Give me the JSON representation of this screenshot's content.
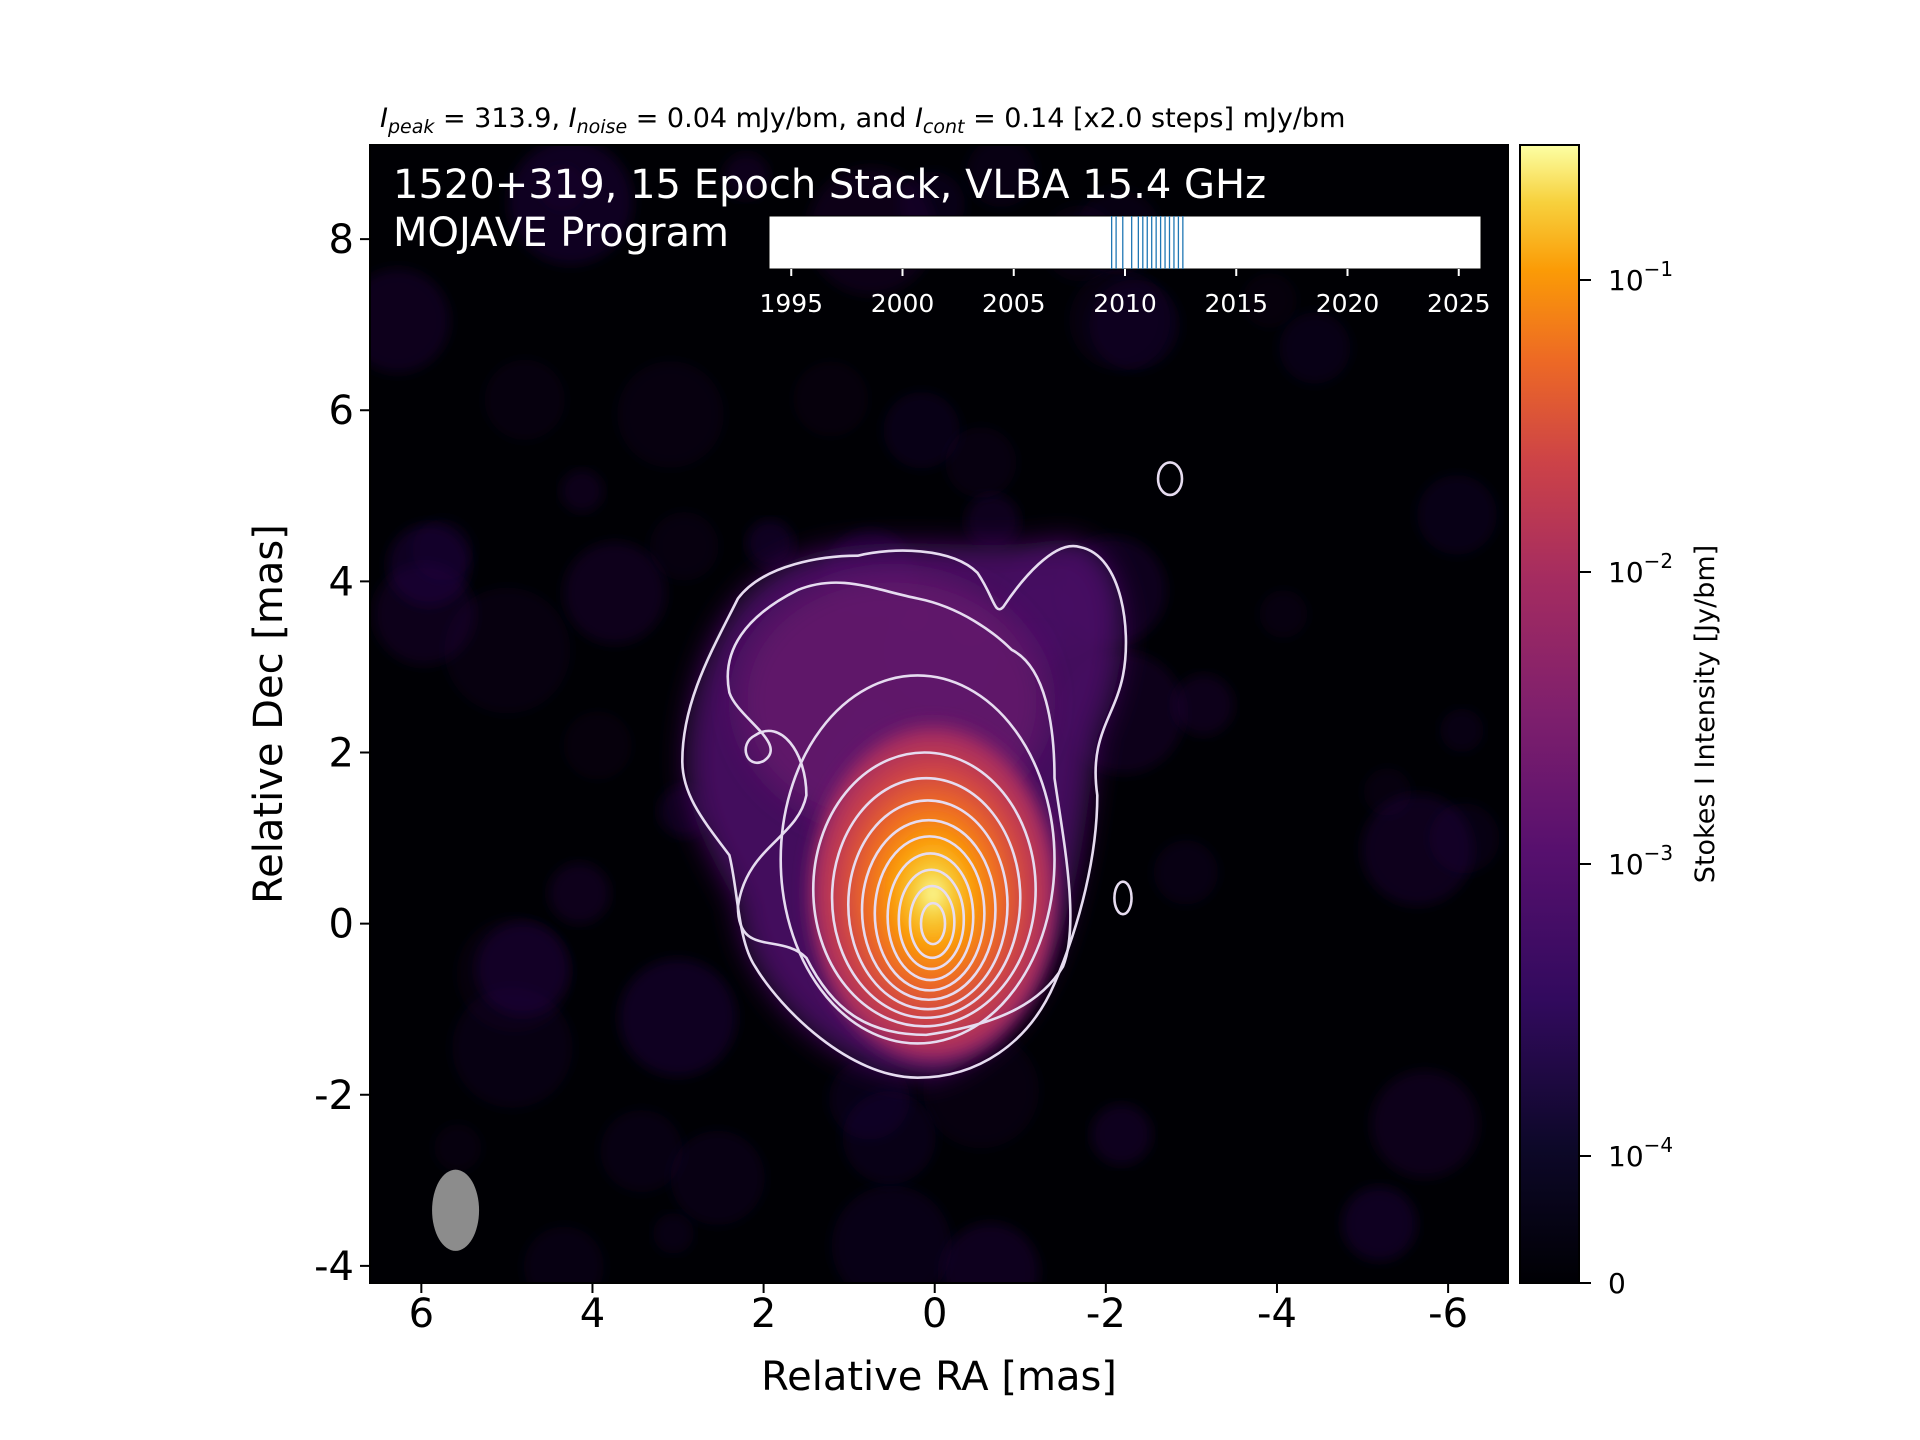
{
  "header": {
    "title_parts": [
      {
        "t": "I",
        "it": true
      },
      {
        "t": "peak",
        "it": true,
        "sub": true
      },
      {
        "t": " = 313.9, "
      },
      {
        "t": "I",
        "it": true
      },
      {
        "t": "noise",
        "it": true,
        "sub": true
      },
      {
        "t": " = 0.04 mJy/bm, and "
      },
      {
        "t": "I",
        "it": true
      },
      {
        "t": "cont",
        "it": true,
        "sub": true
      },
      {
        "t": " = 0.14 [x2.0 steps] mJy/bm"
      }
    ]
  },
  "overlay": {
    "line1": "1520+319, 15 Epoch Stack, VLBA 15.4 GHz",
    "line2": "MOJAVE Program"
  },
  "chart_data": {
    "type": "heatmap",
    "xlabel": "Relative RA [mas]",
    "ylabel": "Relative Dec [mas]",
    "xlim": [
      6.6,
      -6.7
    ],
    "ylim": [
      -4.2,
      9.1
    ],
    "x_ticks": [
      6,
      4,
      2,
      0,
      -2,
      -4,
      -6
    ],
    "x_tick_labels": [
      "6",
      "4",
      "2",
      "0",
      "-2",
      "-4",
      "-6"
    ],
    "y_ticks": [
      8,
      6,
      4,
      2,
      0,
      -2,
      -4
    ],
    "y_tick_labels": [
      "8",
      "6",
      "4",
      "2",
      "0",
      "-2",
      "-4"
    ],
    "colormap": "inferno",
    "colorbar": {
      "label": "Stokes I Intensity [Jy/bm]",
      "scale": "log",
      "ticks": [
        {
          "value": 0.1,
          "base": "10",
          "exp": "−1"
        },
        {
          "value": 0.01,
          "base": "10",
          "exp": "−2"
        },
        {
          "value": 0.001,
          "base": "10",
          "exp": "−3"
        },
        {
          "value": 0.0001,
          "base": "10",
          "exp": "−4"
        },
        {
          "value": 0,
          "base": "0",
          "exp": ""
        }
      ]
    },
    "peak_jy_per_beam": 0.3139,
    "noise_mjy_per_beam": 0.04,
    "lowest_contour_mjy_per_beam": 0.14,
    "contour_step_factor": 2.0,
    "core_position_mas": [
      0,
      0
    ],
    "beam": {
      "center_mas": [
        5.6,
        -3.35
      ],
      "major_mas": 0.95,
      "minor_mas": 0.55,
      "pa_deg": 0
    },
    "epoch_timeline": {
      "xlim": [
        1994,
        2026
      ],
      "ticks": [
        1995,
        2000,
        2005,
        2010,
        2015,
        2020,
        2025
      ],
      "tick_labels": [
        "1995",
        "2000",
        "2005",
        "2010",
        "2015",
        "2020",
        "2025"
      ],
      "epochs": [
        2009.4,
        2009.6,
        2009.9,
        2010.3,
        2010.6,
        2010.8,
        2011.0,
        2011.2,
        2011.4,
        2011.6,
        2011.8,
        2012.0,
        2012.2,
        2012.4,
        2012.6
      ]
    }
  },
  "colors": {
    "background": "#000004",
    "contour": "#e6dcf0",
    "beam": "#8c8c8c",
    "epoch_line": "#1f77b4"
  }
}
